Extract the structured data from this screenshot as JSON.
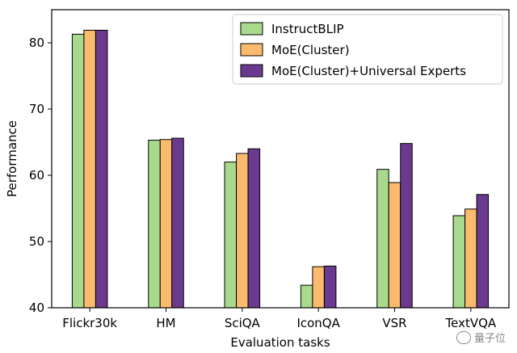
{
  "chart_data": {
    "type": "bar",
    "title": "",
    "xlabel": "Evaluation tasks",
    "ylabel": "Performance",
    "ylim": [
      40,
      85
    ],
    "yticks": [
      40,
      50,
      60,
      70,
      80
    ],
    "grid": false,
    "legend_position": "top-right",
    "categories": [
      "Flickr30k",
      "HM",
      "SciQA",
      "IconQA",
      "VSR",
      "TextVQA"
    ],
    "series": [
      {
        "name": "InstructBLIP",
        "color": "#a8d98c",
        "values": [
          81.3,
          65.3,
          62.0,
          43.4,
          60.9,
          53.9
        ]
      },
      {
        "name": "MoE(Cluster)",
        "color": "#fbbb6e",
        "values": [
          81.9,
          65.4,
          63.3,
          46.2,
          58.9,
          54.9
        ]
      },
      {
        "name": "MoE(Cluster)+Universal Experts",
        "color": "#6a3a8e",
        "values": [
          81.9,
          65.6,
          64.0,
          46.3,
          64.8,
          57.1
        ]
      }
    ]
  },
  "watermark": {
    "text": "量子位"
  }
}
